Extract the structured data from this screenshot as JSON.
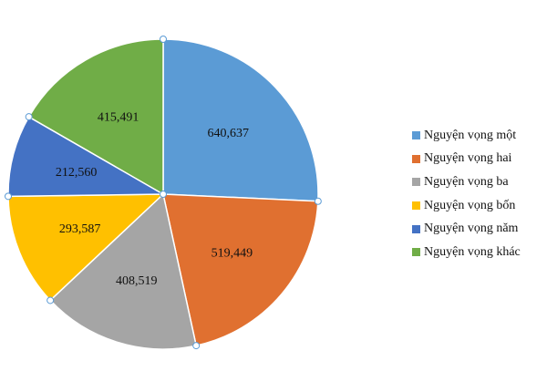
{
  "chart_data": {
    "type": "pie",
    "categories": [
      "Nguyện vọng một",
      "Nguyện vọng hai",
      "Nguyện vọng ba",
      "Nguyện vọng bốn",
      "Nguyện vọng năm",
      "Nguyện vọng khác"
    ],
    "values": [
      640637,
      519449,
      408519,
      293587,
      212560,
      415491
    ],
    "value_labels": [
      "640,637",
      "519,449",
      "408,519",
      "293,587",
      "212,560",
      "415,491"
    ],
    "colors": [
      "#5b9bd5",
      "#e07030",
      "#a5a5a5",
      "#ffc000",
      "#4472c4",
      "#70ad47"
    ],
    "title": "",
    "legend_position": "right"
  }
}
